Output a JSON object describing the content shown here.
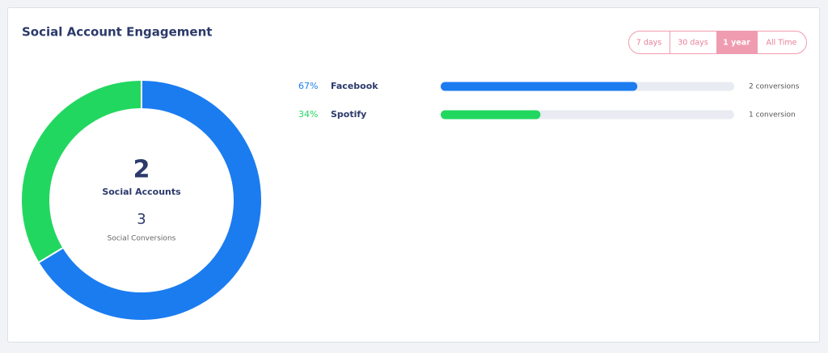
{
  "header": {
    "title": "Social Account Engagement",
    "filters": {
      "options": [
        "7 days",
        "30 days",
        "1 year",
        "All Time"
      ],
      "active": 2
    }
  },
  "chart_data": {
    "type": "pie",
    "donut": true,
    "categories": [
      "Facebook",
      "Spotify"
    ],
    "values": [
      67,
      34
    ],
    "value_labels": [
      "67%",
      "34%"
    ],
    "colors": [
      "#1b7cf0",
      "#22d760"
    ],
    "conversion_labels": [
      "2 conversions",
      "1 conversion"
    ],
    "xlim": [
      0,
      100
    ],
    "center": {
      "value": 2,
      "label": "Social Accounts",
      "secondary_value": 3,
      "secondary_label": "Social Conversions"
    }
  }
}
